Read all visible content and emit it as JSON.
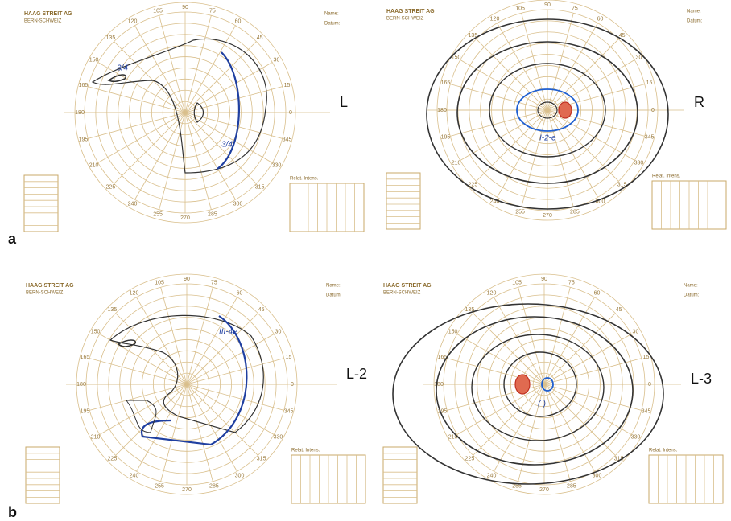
{
  "brand": "HAAG STREIT AG",
  "brand_sub": "BERN-SCHWEIZ",
  "name_field": "Name:",
  "date_field": "Datum:",
  "table_title": "Relat. Intens.",
  "angles": [
    0,
    15,
    30,
    45,
    60,
    75,
    90,
    105,
    120,
    135,
    150,
    165,
    180,
    195,
    210,
    225,
    240,
    255,
    270,
    285,
    300,
    315,
    330,
    345
  ],
  "panels": [
    {
      "label": "L",
      "notes": [
        "3/4",
        "3/4"
      ]
    },
    {
      "label": "R",
      "notes": [
        "I-2-e"
      ]
    },
    {
      "label": "L-2",
      "notes": [
        "III-4e"
      ]
    },
    {
      "label": "L-3",
      "notes": [
        "(-)"
      ]
    }
  ],
  "row_labels": [
    "a",
    "b"
  ]
}
